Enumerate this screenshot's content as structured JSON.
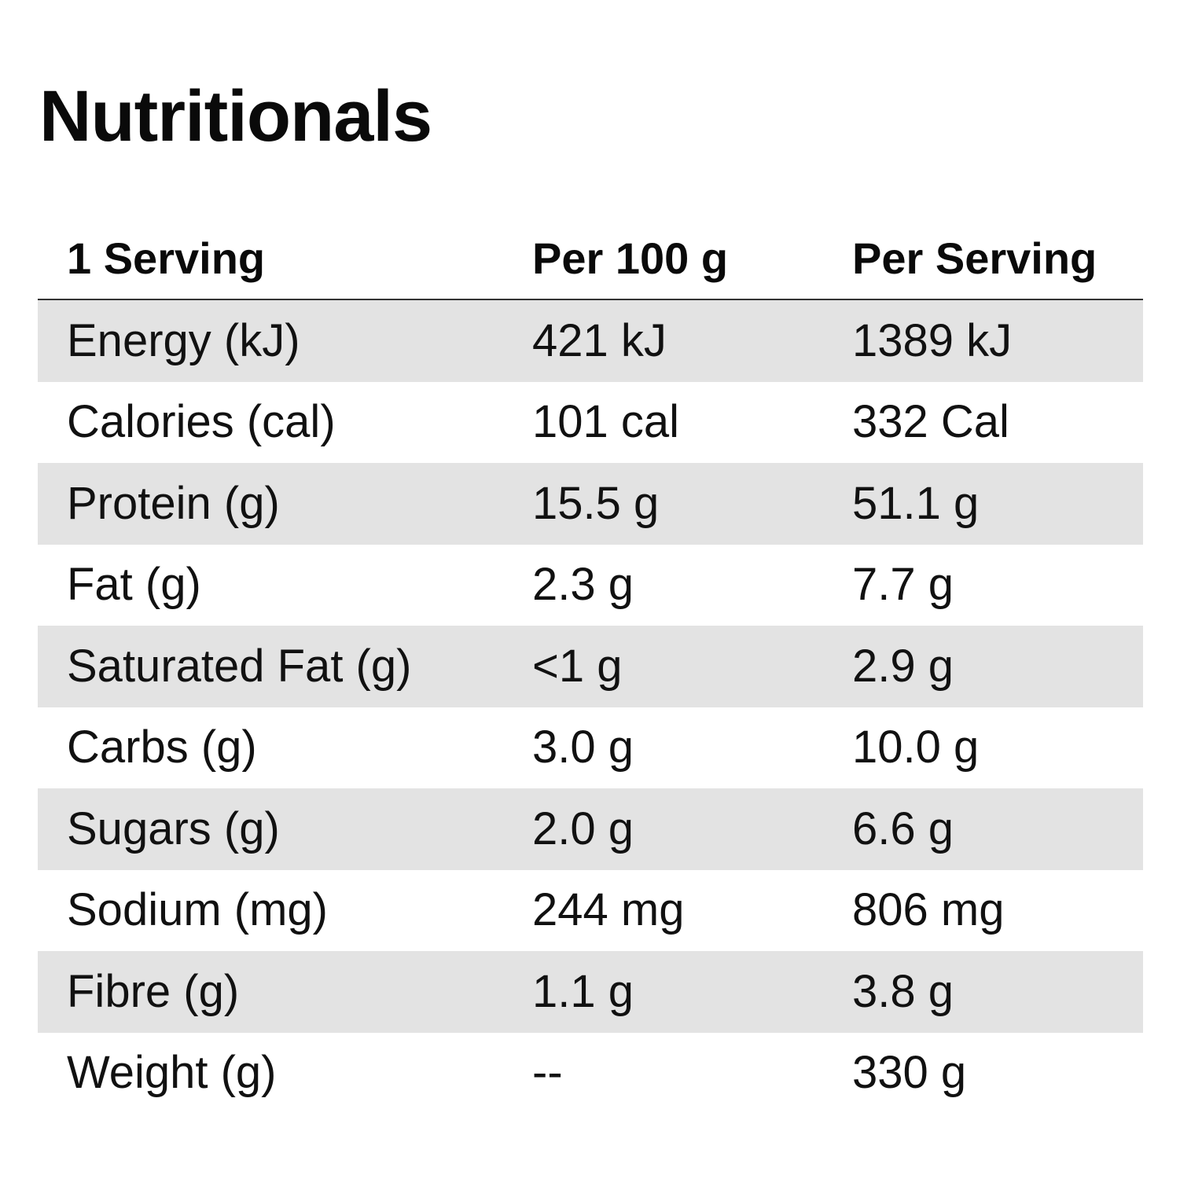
{
  "title": "Nutritionals",
  "table": {
    "headers": [
      "1 Serving",
      "Per 100 g",
      "Per Serving"
    ],
    "rows": [
      {
        "nutrient": "Energy (kJ)",
        "per_100g": "421 kJ",
        "per_serving": "1389 kJ",
        "shaded": true
      },
      {
        "nutrient": "Calories (cal)",
        "per_100g": "101 cal",
        "per_serving": "332 Cal",
        "shaded": false
      },
      {
        "nutrient": "Protein (g)",
        "per_100g": "15.5 g",
        "per_serving": "51.1 g",
        "shaded": true
      },
      {
        "nutrient": "Fat (g)",
        "per_100g": "2.3 g",
        "per_serving": "7.7 g",
        "shaded": false
      },
      {
        "nutrient": "Saturated Fat (g)",
        "per_100g": "<1 g",
        "per_serving": "2.9 g",
        "shaded": true
      },
      {
        "nutrient": "Carbs (g)",
        "per_100g": "3.0 g",
        "per_serving": "10.0 g",
        "shaded": false
      },
      {
        "nutrient": "Sugars (g)",
        "per_100g": "2.0 g",
        "per_serving": "6.6 g",
        "shaded": true
      },
      {
        "nutrient": "Sodium (mg)",
        "per_100g": "244 mg",
        "per_serving": "806 mg",
        "shaded": false
      },
      {
        "nutrient": "Fibre (g)",
        "per_100g": "1.1 g",
        "per_serving": "3.8 g",
        "shaded": true
      },
      {
        "nutrient": "Weight (g)",
        "per_100g": "--",
        "per_serving": "330 g",
        "shaded": false
      }
    ]
  },
  "colors": {
    "shaded_row": "#e3e3e3",
    "text": "#111111",
    "divider": "#333333"
  }
}
